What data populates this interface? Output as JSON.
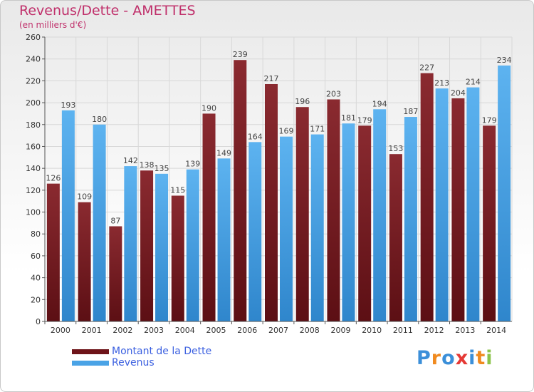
{
  "title": "Revenus/Dette - AMETTES",
  "subtitle": "(en milliers d'€)",
  "logo": {
    "text": "Proxiti",
    "colors": [
      "#3b8fd9",
      "#f08a1f",
      "#3b8fd9",
      "#e53935",
      "#3b8fd9",
      "#f08a1f",
      "#8bc34a"
    ]
  },
  "colors": {
    "dette": "#7a1e24",
    "revenus": "#4aa3e6",
    "grid": "#d8d8d8",
    "axis": "#555555",
    "title": "#c0306b",
    "legend_text": "#3a5fe0"
  },
  "chart_data": {
    "type": "bar",
    "categories": [
      "2000",
      "2001",
      "2002",
      "2003",
      "2004",
      "2005",
      "2006",
      "2007",
      "2008",
      "2009",
      "2010",
      "2011",
      "2012",
      "2013",
      "2014"
    ],
    "series": [
      {
        "name": "Montant de la Dette",
        "values": [
          126,
          109,
          87,
          138,
          115,
          190,
          239,
          217,
          196,
          203,
          179,
          153,
          227,
          204,
          179
        ]
      },
      {
        "name": "Revenus",
        "values": [
          193,
          180,
          142,
          135,
          139,
          149,
          164,
          169,
          171,
          181,
          194,
          187,
          213,
          214,
          234
        ]
      }
    ],
    "ylim": [
      0,
      260
    ],
    "yticks": [
      0,
      20,
      40,
      60,
      80,
      100,
      120,
      140,
      160,
      180,
      200,
      220,
      240,
      260
    ],
    "grid": true,
    "legend_position": "bottom-left"
  }
}
